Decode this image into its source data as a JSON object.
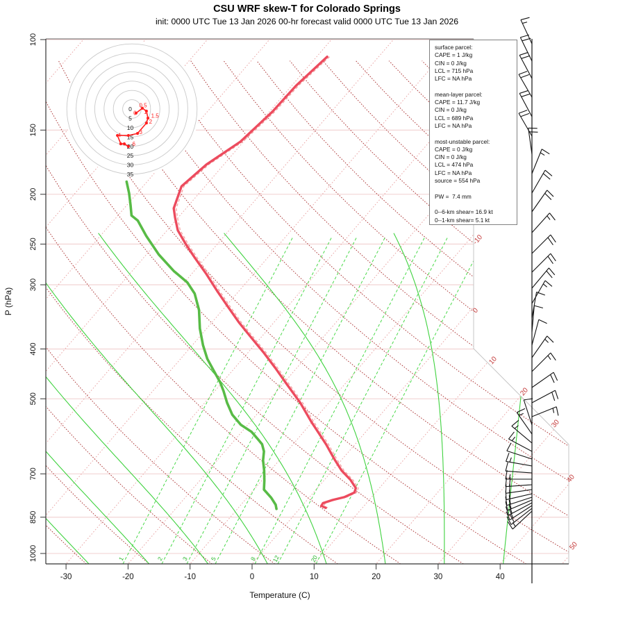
{
  "header": {
    "title": "CSU WRF skew-T for Colorado Springs",
    "subtitle": "init: 0000 UTC Tue 13 Jan 2026    00-hr forecast valid 0000 UTC Tue 13 Jan 2026"
  },
  "axes": {
    "x_label": "Temperature (C)",
    "y_label": "P (hPa)",
    "pressure_ticks": [
      100,
      150,
      200,
      250,
      300,
      400,
      500,
      700,
      850,
      1000
    ],
    "temp_ticks": [
      -30,
      -20,
      -10,
      0,
      10,
      20,
      30,
      40
    ]
  },
  "parcel_box": {
    "lines": [
      "surface parcel:",
      "CAPE = 1 J/kg",
      "CIN = 0 J/kg",
      "LCL = 715 hPa",
      "LFC = NA hPa",
      "",
      "mean-layer parcel:",
      "CAPE = 11.7 J/kg",
      "CIN = 0 J/kg",
      "LCL = 689 hPa",
      "LFC = NA hPa",
      "",
      "most-unstable parcel:",
      "CAPE = 0 J/kg",
      "CIN = 0 J/kg",
      "LCL = 474 hPa",
      "LFC = NA hPa",
      "source = 554 hPa",
      "",
      "PW =  7.4 mm",
      "",
      "0--6-km shear= 16.9 kt",
      "0--1-km shear= 5.1 kt"
    ]
  },
  "colors": {
    "isobar": "#f1cfcf",
    "isotherm": "#e9a4a4",
    "dry_adiabat": "#ae3a3a",
    "moist_adiabat": "#3ed23e",
    "mixing_ratio": "#4ad94a",
    "temperature_trace": "#ec4b5e",
    "virtual_temp_dashed": "#f49a9a",
    "dewpoint_trace": "#58bb46",
    "hodograph_ring": "#c9c9c9",
    "hodograph_trace": "#ff2020",
    "edge_label_red": "#c43a3a",
    "mixing_label_green": "#2bb52b",
    "barb": "#111111",
    "axis": "#333333"
  },
  "chart_data": {
    "type": "line",
    "subtype": "skewT-logP sounding",
    "pressure_range_hPa": [
      100,
      1048
    ],
    "temp_axis_range_C": [
      -30,
      40
    ],
    "grid": {
      "isobars_hPa": [
        100,
        150,
        200,
        250,
        300,
        400,
        500,
        700,
        850,
        1000
      ],
      "isotherms_C_step": 10,
      "isotherm_edge_labels_C": [
        -10,
        0,
        10,
        20,
        30,
        40,
        50
      ],
      "dry_adiabats_theta_C": [
        -30,
        -20,
        -10,
        0,
        10,
        20,
        30,
        40,
        50,
        60,
        70,
        80,
        90,
        100,
        110,
        120,
        130,
        140,
        150,
        160
      ],
      "moist_adiabats_surfaceT_C": [
        -26.3,
        -16.6,
        -7.1,
        2.5,
        12.0,
        21.5,
        31.0,
        40.5
      ],
      "mixing_ratio_g_kg": [
        1,
        2,
        3,
        5,
        8,
        12,
        20
      ]
    },
    "temperature_trace_pT": [
      [
        108,
        -58.3
      ],
      [
        123,
        -59.3
      ],
      [
        138,
        -59.5
      ],
      [
        158,
        -60.5
      ],
      [
        175,
        -62.8
      ],
      [
        193,
        -63.8
      ],
      [
        213,
        -62.0
      ],
      [
        222,
        -60.5
      ],
      [
        235,
        -58.3
      ],
      [
        250,
        -55.1
      ],
      [
        266,
        -51.7
      ],
      [
        286,
        -47.6
      ],
      [
        308,
        -43.6
      ],
      [
        331,
        -39.6
      ],
      [
        356,
        -35.5
      ],
      [
        381,
        -31.4
      ],
      [
        407,
        -27.4
      ],
      [
        436,
        -23.4
      ],
      [
        468,
        -19.4
      ],
      [
        509,
        -14.6
      ],
      [
        554,
        -10.2
      ],
      [
        580,
        -7.7
      ],
      [
        614,
        -4.6
      ],
      [
        655,
        -1.3
      ],
      [
        690,
        1.5
      ],
      [
        719,
        4.2
      ],
      [
        746,
        6.2
      ],
      [
        761,
        6.6
      ],
      [
        777,
        5.6
      ],
      [
        787,
        4.1
      ],
      [
        798,
        3.0
      ],
      [
        808,
        3.1
      ],
      [
        815,
        4.1
      ]
    ],
    "dewpoint_trace_pT": [
      [
        189,
        -73.3
      ],
      [
        199,
        -71.3
      ],
      [
        210,
        -69.4
      ],
      [
        220,
        -67.8
      ],
      [
        225,
        -66.1
      ],
      [
        241,
        -62.6
      ],
      [
        262,
        -58.0
      ],
      [
        282,
        -53.3
      ],
      [
        297,
        -49.5
      ],
      [
        312,
        -46.8
      ],
      [
        336,
        -43.8
      ],
      [
        365,
        -41.1
      ],
      [
        393,
        -38.3
      ],
      [
        418,
        -35.7
      ],
      [
        440,
        -33.1
      ],
      [
        464,
        -30.4
      ],
      [
        483,
        -28.6
      ],
      [
        509,
        -26.4
      ],
      [
        537,
        -23.9
      ],
      [
        562,
        -21.1
      ],
      [
        580,
        -18.4
      ],
      [
        600,
        -16.3
      ],
      [
        613,
        -15.0
      ],
      [
        633,
        -13.7
      ],
      [
        659,
        -12.6
      ],
      [
        690,
        -11.0
      ],
      [
        721,
        -9.6
      ],
      [
        751,
        -8.4
      ],
      [
        779,
        -6.1
      ],
      [
        804,
        -4.4
      ],
      [
        819,
        -3.7
      ]
    ],
    "hodograph": {
      "ring_step_kt": 5,
      "ring_labels": [
        "0",
        "5",
        "10",
        "15",
        "20",
        "25",
        "30",
        "35"
      ],
      "trace_uv_kt": [
        [
          2.2,
          -2.2
        ],
        [
          5.6,
          0.4
        ],
        [
          7.8,
          -1.1
        ],
        [
          8.6,
          -4.9
        ],
        [
          7.8,
          -7.5
        ],
        [
          3.0,
          -13.1
        ],
        [
          -1.9,
          -14.2
        ],
        [
          -7.8,
          -14.2
        ],
        [
          -6.0,
          -18.7
        ],
        [
          -4.1,
          -18.7
        ],
        [
          -1.9,
          -20.1
        ]
      ],
      "height_labels_km": [
        {
          "t": "0",
          "u": 0.8,
          "v": -3.2
        },
        {
          "t": "0.5",
          "u": 3.9,
          "v": 1.0
        },
        {
          "t": "1",
          "u": 6.4,
          "v": -2.6
        },
        {
          "t": "1.5",
          "u": 10.3,
          "v": -4.7
        },
        {
          "t": "2",
          "u": 9.2,
          "v": -7.9
        },
        {
          "t": "3",
          "u": 3.9,
          "v": -13.4
        },
        {
          "t": "4",
          "u": -7.6,
          "v": -15.2
        },
        {
          "t": "6",
          "u": 0.2,
          "v": -19.8
        }
      ]
    },
    "wind_barbs_y_ang_full_half": [
      [
        63,
        -25,
        1,
        1
      ],
      [
        88,
        -26,
        2,
        0
      ],
      [
        113,
        -28,
        2,
        0
      ],
      [
        140,
        -30,
        2,
        0
      ],
      [
        168,
        -28,
        2,
        0
      ],
      [
        196,
        -30,
        2,
        0
      ],
      [
        222,
        -8,
        2,
        0
      ],
      [
        250,
        22,
        1,
        1
      ],
      [
        278,
        30,
        2,
        0
      ],
      [
        305,
        35,
        2,
        0
      ],
      [
        335,
        42,
        1,
        1
      ],
      [
        365,
        45,
        2,
        0
      ],
      [
        392,
        45,
        2,
        0
      ],
      [
        415,
        40,
        2,
        0
      ],
      [
        437,
        30,
        1,
        1
      ],
      [
        458,
        10,
        1,
        0
      ],
      [
        478,
        5,
        1,
        0
      ],
      [
        497,
        15,
        1,
        0
      ],
      [
        515,
        35,
        1,
        1
      ],
      [
        535,
        45,
        1,
        1
      ],
      [
        558,
        55,
        2,
        0
      ],
      [
        580,
        62,
        2,
        0
      ],
      [
        600,
        68,
        1,
        1
      ],
      [
        612,
        -18,
        1,
        0
      ],
      [
        625,
        -35,
        1,
        1
      ],
      [
        638,
        -50,
        1,
        1
      ],
      [
        650,
        -62,
        1,
        1
      ],
      [
        661,
        -72,
        1,
        0
      ],
      [
        671,
        -80,
        1,
        1
      ],
      [
        681,
        -86,
        1,
        0
      ],
      [
        690,
        -90,
        1,
        1
      ],
      [
        698,
        -94,
        2,
        0
      ],
      [
        705,
        -98,
        2,
        0
      ],
      [
        711,
        -103,
        2,
        0
      ],
      [
        716,
        -108,
        2,
        0
      ],
      [
        720,
        -113,
        2,
        0
      ],
      [
        724,
        -118,
        2,
        0
      ],
      [
        728,
        -123,
        2,
        0
      ],
      [
        732,
        -128,
        2,
        0
      ],
      [
        736,
        -133,
        1,
        1
      ]
    ],
    "isotherm_edge_label_pos": [
      [
        -10,
        690,
        347
      ],
      [
        0,
        687,
        449
      ],
      [
        10,
        712,
        521
      ],
      [
        20,
        757,
        566
      ],
      [
        30,
        802,
        612
      ],
      [
        40,
        824,
        691
      ],
      [
        50,
        828,
        788
      ]
    ],
    "mixing_ratio_label_x": [
      [
        1,
        177
      ],
      [
        2,
        233
      ],
      [
        3,
        269
      ],
      [
        5,
        310
      ],
      [
        8,
        367
      ],
      [
        12,
        400
      ],
      [
        20,
        455
      ]
    ]
  }
}
